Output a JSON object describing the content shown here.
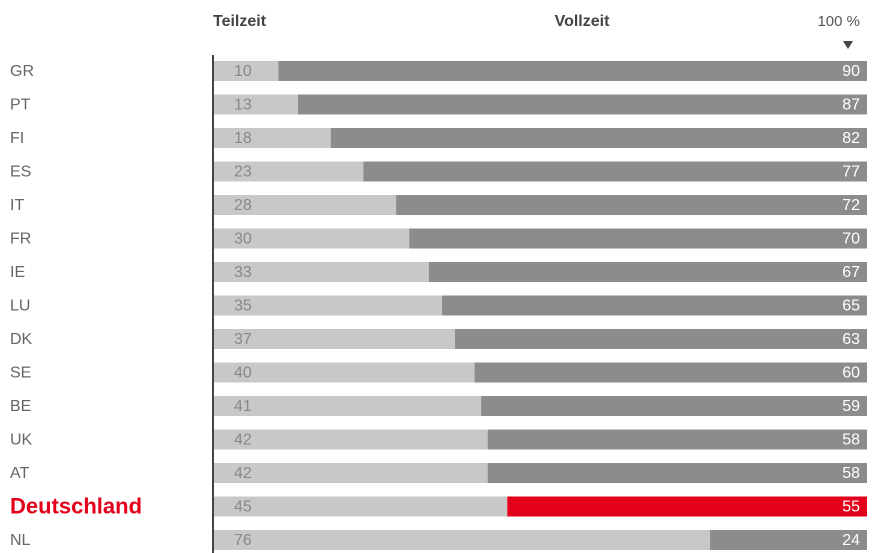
{
  "chart_data": {
    "type": "stacked_bar_h",
    "categories": [
      "GR",
      "PT",
      "FI",
      "ES",
      "IT",
      "FR",
      "IE",
      "LU",
      "DK",
      "SE",
      "BE",
      "UK",
      "AT",
      "Deutschland",
      "NL"
    ],
    "series": [
      {
        "name": "Teilzeit",
        "color": "#c8c8c8",
        "values": [
          10,
          13,
          18,
          23,
          28,
          30,
          33,
          35,
          37,
          40,
          41,
          42,
          42,
          45,
          76
        ]
      },
      {
        "name": "Vollzeit",
        "color": "#8c8c8c",
        "values": [
          90,
          87,
          82,
          77,
          72,
          70,
          67,
          65,
          63,
          60,
          59,
          58,
          58,
          55,
          24
        ],
        "colors": [
          "#8c8c8c",
          "#8c8c8c",
          "#8c8c8c",
          "#8c8c8c",
          "#8c8c8c",
          "#8c8c8c",
          "#8c8c8c",
          "#8c8c8c",
          "#8c8c8c",
          "#8c8c8c",
          "#8c8c8c",
          "#8c8c8c",
          "#8c8c8c",
          "#e2001a",
          "#8c8c8c"
        ]
      }
    ],
    "xlim": [
      0,
      100
    ],
    "xticks": [
      {
        "value": 100,
        "label": "100 %"
      }
    ]
  }
}
